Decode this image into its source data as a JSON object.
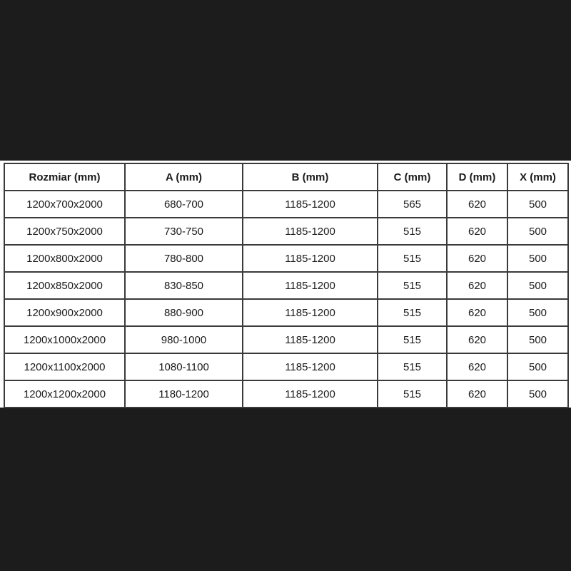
{
  "colors": {
    "background_bar": "#1c1c1c",
    "band_background": "#ffffff",
    "table_border": "#3a3a3a",
    "text": "#1a1a1a"
  },
  "chart_data": {
    "type": "table",
    "columns": [
      "Rozmiar (mm)",
      "A (mm)",
      "B (mm)",
      "C (mm)",
      "D (mm)",
      "X (mm)"
    ],
    "rows": [
      [
        "1200x700x2000",
        "680-700",
        "1185-1200",
        "565",
        "620",
        "500"
      ],
      [
        "1200x750x2000",
        "730-750",
        "1185-1200",
        "515",
        "620",
        "500"
      ],
      [
        "1200x800x2000",
        "780-800",
        "1185-1200",
        "515",
        "620",
        "500"
      ],
      [
        "1200x850x2000",
        "830-850",
        "1185-1200",
        "515",
        "620",
        "500"
      ],
      [
        "1200x900x2000",
        "880-900",
        "1185-1200",
        "515",
        "620",
        "500"
      ],
      [
        "1200x1000x2000",
        "980-1000",
        "1185-1200",
        "515",
        "620",
        "500"
      ],
      [
        "1200x1100x2000",
        "1080-1100",
        "1185-1200",
        "515",
        "620",
        "500"
      ],
      [
        "1200x1200x2000",
        "1180-1200",
        "1185-1200",
        "515",
        "620",
        "500"
      ]
    ]
  }
}
